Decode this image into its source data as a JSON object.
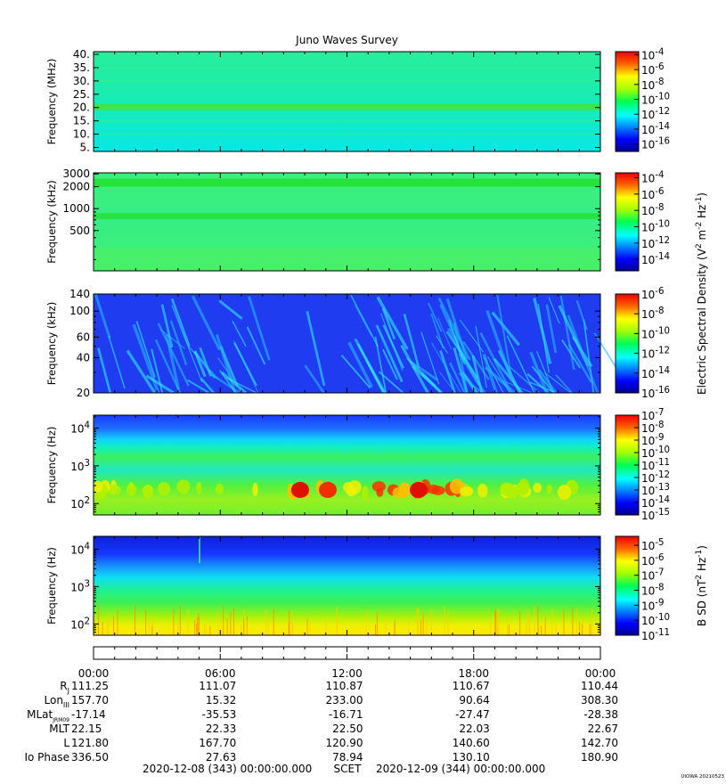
{
  "chart_data": [
    {
      "type": "heatmap",
      "title": "Juno Waves Survey",
      "ylabel": "Frequency (MHz)",
      "yscale": "linear",
      "ylim": [
        3.5,
        41
      ],
      "yticks": [
        "40.",
        "35.",
        "30.",
        "25.",
        "20.",
        "15.",
        "10.",
        "5."
      ],
      "ytick_values": [
        40,
        35,
        30,
        25,
        20,
        15,
        10,
        5
      ],
      "colorbar": {
        "scale": "log",
        "ticks": [
          {
            "base": "10",
            "exp": "-4"
          },
          {
            "base": "10",
            "exp": "-6"
          },
          {
            "base": "10",
            "exp": "-8"
          },
          {
            "base": "10",
            "exp": "-10"
          },
          {
            "base": "10",
            "exp": "-12"
          },
          {
            "base": "10",
            "exp": "-14"
          },
          {
            "base": "10",
            "exp": "-16"
          }
        ],
        "range_exp": [
          -17,
          -3.6
        ]
      }
    },
    {
      "type": "heatmap",
      "ylabel": "Frequency (kHz)",
      "yscale": "log",
      "ylim": [
        140,
        3100
      ],
      "yticks": [
        "3000",
        "2000",
        "1000",
        "500"
      ],
      "ytick_values": [
        3000,
        2000,
        1000,
        500
      ],
      "colorbar": {
        "scale": "log",
        "ticks": [
          {
            "base": "10",
            "exp": "-4"
          },
          {
            "base": "10",
            "exp": "-6"
          },
          {
            "base": "10",
            "exp": "-8"
          },
          {
            "base": "10",
            "exp": "-10"
          },
          {
            "base": "10",
            "exp": "-12"
          },
          {
            "base": "10",
            "exp": "-14"
          }
        ],
        "range_exp": [
          -15.4,
          -3.4
        ]
      }
    },
    {
      "type": "heatmap",
      "ylabel": "Frequency (kHz)",
      "yscale": "log",
      "ylim": [
        20,
        140
      ],
      "yticks": [
        "140",
        "100",
        "60",
        "40",
        "20"
      ],
      "ytick_values": [
        140,
        100,
        60,
        40,
        20
      ],
      "colorbar": {
        "label_parts": [
          "Electric Spectral Density (V",
          "2",
          " m",
          "-2",
          " Hz",
          "-1",
          ")"
        ],
        "scale": "log",
        "ticks": [
          {
            "base": "10",
            "exp": "-6"
          },
          {
            "base": "10",
            "exp": "-8"
          },
          {
            "base": "10",
            "exp": "-10"
          },
          {
            "base": "10",
            "exp": "-12"
          },
          {
            "base": "10",
            "exp": "-14"
          },
          {
            "base": "10",
            "exp": "-16"
          }
        ],
        "range_exp": [
          -16,
          -6
        ]
      }
    },
    {
      "type": "heatmap",
      "ylabel": "Frequency (Hz)",
      "yscale": "log",
      "ylim": [
        50,
        22000
      ],
      "yticks": [
        {
          "base": "10",
          "exp": "4"
        },
        {
          "base": "10",
          "exp": "3"
        },
        {
          "base": "10",
          "exp": "2"
        }
      ],
      "ytick_values": [
        10000,
        1000,
        100
      ],
      "colorbar": {
        "scale": "log",
        "ticks": [
          {
            "base": "10",
            "exp": "-7"
          },
          {
            "base": "10",
            "exp": "-8"
          },
          {
            "base": "10",
            "exp": "-9"
          },
          {
            "base": "10",
            "exp": "-10"
          },
          {
            "base": "10",
            "exp": "-11"
          },
          {
            "base": "10",
            "exp": "-12"
          },
          {
            "base": "10",
            "exp": "-13"
          },
          {
            "base": "10",
            "exp": "-14"
          },
          {
            "base": "10",
            "exp": "-15"
          }
        ],
        "range_exp": [
          -15,
          -7
        ]
      }
    },
    {
      "type": "heatmap",
      "ylabel": "Frequency (Hz)",
      "yscale": "log",
      "ylim": [
        50,
        22000
      ],
      "yticks": [
        {
          "base": "10",
          "exp": "4"
        },
        {
          "base": "10",
          "exp": "3"
        },
        {
          "base": "10",
          "exp": "2"
        }
      ],
      "ytick_values": [
        10000,
        1000,
        100
      ],
      "colorbar": {
        "label_parts": [
          "B SD (nT",
          "2",
          " Hz",
          "-1",
          ")"
        ],
        "scale": "log",
        "ticks": [
          {
            "base": "10",
            "exp": "-5"
          },
          {
            "base": "10",
            "exp": "-6"
          },
          {
            "base": "10",
            "exp": "-7"
          },
          {
            "base": "10",
            "exp": "-8"
          },
          {
            "base": "10",
            "exp": "-9"
          },
          {
            "base": "10",
            "exp": "-10"
          },
          {
            "base": "10",
            "exp": "-11"
          }
        ],
        "range_exp": [
          -11,
          -4.4
        ]
      }
    }
  ],
  "time_axis": {
    "tick_labels": [
      "00:00",
      "06:00",
      "12:00",
      "18:00",
      "00:00"
    ],
    "rows": [
      {
        "label": "R",
        "sub": "J",
        "values": [
          "111.25",
          "111.07",
          "110.87",
          "110.67",
          "110.44"
        ]
      },
      {
        "label": "Lon",
        "sub": "III",
        "values": [
          "157.70",
          "15.32",
          "233.00",
          "90.64",
          "308.30"
        ]
      },
      {
        "label": "MLat",
        "sub": "JRM09",
        "values": [
          "-17.14",
          "-35.53",
          "-16.71",
          "-27.47",
          "-28.38"
        ]
      },
      {
        "label": "MLT",
        "sub": "",
        "values": [
          "22.15",
          "22.33",
          "22.50",
          "22.03",
          "22.67"
        ]
      },
      {
        "label": "L",
        "sub": "",
        "values": [
          "121.80",
          "167.70",
          "120.90",
          "140.60",
          "142.70"
        ]
      },
      {
        "label": "Io Phase",
        "sub": "",
        "values": [
          "336.50",
          "27.63",
          "78.94",
          "130.10",
          "180.90"
        ]
      }
    ],
    "start": "2020-12-08 (343) 00:00:00.000",
    "frame": "SCET",
    "end": "2020-12-09 (344) 00:00:00.000"
  },
  "credit": "UIOWA 20210523"
}
